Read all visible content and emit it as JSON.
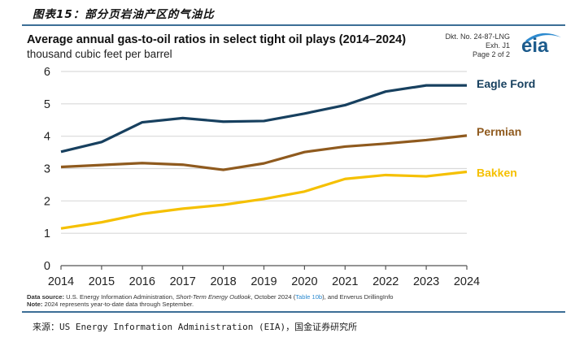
{
  "figure": {
    "caption": "图表15：部分页岩油产区的气油比",
    "footer": "来源：US Energy Information Administration (EIA)，国金证券研究所"
  },
  "header": {
    "docket": "Dkt. No. 24-87-LNG",
    "exhibit": "Exh. J1",
    "page": "Page 2 of 2",
    "logo_text": "eia"
  },
  "notes": {
    "source_label": "Data source:",
    "source_text_1": " U.S. Energy Information Administration, ",
    "source_italic": "Short-Term Energy Outlook",
    "source_text_2": ", October 2024 (",
    "source_link": "Table 10b",
    "source_text_3": "), and Enverus DrillingInfo",
    "note_label": "Note:",
    "note_text": " 2024 represents year-to-date data through September."
  },
  "colors": {
    "eagle_ford": "#17405f",
    "permian": "#8f5a1e",
    "bakken": "#f5c000",
    "grid": "#d9d9d9",
    "axis": "#555555"
  },
  "chart_data": {
    "type": "line",
    "title": "Average annual gas-to-oil ratios in select tight oil plays (2014–2024)",
    "subtitle": "thousand cubic feet per barrel",
    "xlabel": "",
    "ylabel": "thousand cubic feet per barrel",
    "x": [
      2014,
      2015,
      2016,
      2017,
      2018,
      2019,
      2020,
      2021,
      2022,
      2023,
      2024
    ],
    "x_tick_labels": [
      "2014",
      "2015",
      "2016",
      "2017",
      "2018",
      "2019",
      "2020",
      "2021",
      "2022",
      "2023",
      "2024"
    ],
    "y_ticks": [
      0,
      1,
      2,
      3,
      4,
      5,
      6
    ],
    "y_tick_labels": [
      "0",
      "1",
      "2",
      "3",
      "4",
      "5",
      "6"
    ],
    "ylim": [
      0,
      6
    ],
    "xlim": [
      2014,
      2024
    ],
    "grid": "horizontal",
    "legend": "direct labels at right end of lines",
    "series": [
      {
        "name": "Eagle Ford",
        "key": "eagle_ford",
        "values": [
          3.52,
          3.82,
          4.43,
          4.56,
          4.45,
          4.47,
          4.7,
          4.96,
          5.38,
          5.57,
          5.57
        ]
      },
      {
        "name": "Permian",
        "key": "permian",
        "values": [
          3.05,
          3.11,
          3.17,
          3.12,
          2.96,
          3.16,
          3.51,
          3.68,
          3.77,
          3.88,
          4.02
        ]
      },
      {
        "name": "Bakken",
        "key": "bakken",
        "values": [
          1.15,
          1.34,
          1.6,
          1.76,
          1.88,
          2.06,
          2.29,
          2.68,
          2.8,
          2.76,
          2.9
        ]
      }
    ]
  }
}
